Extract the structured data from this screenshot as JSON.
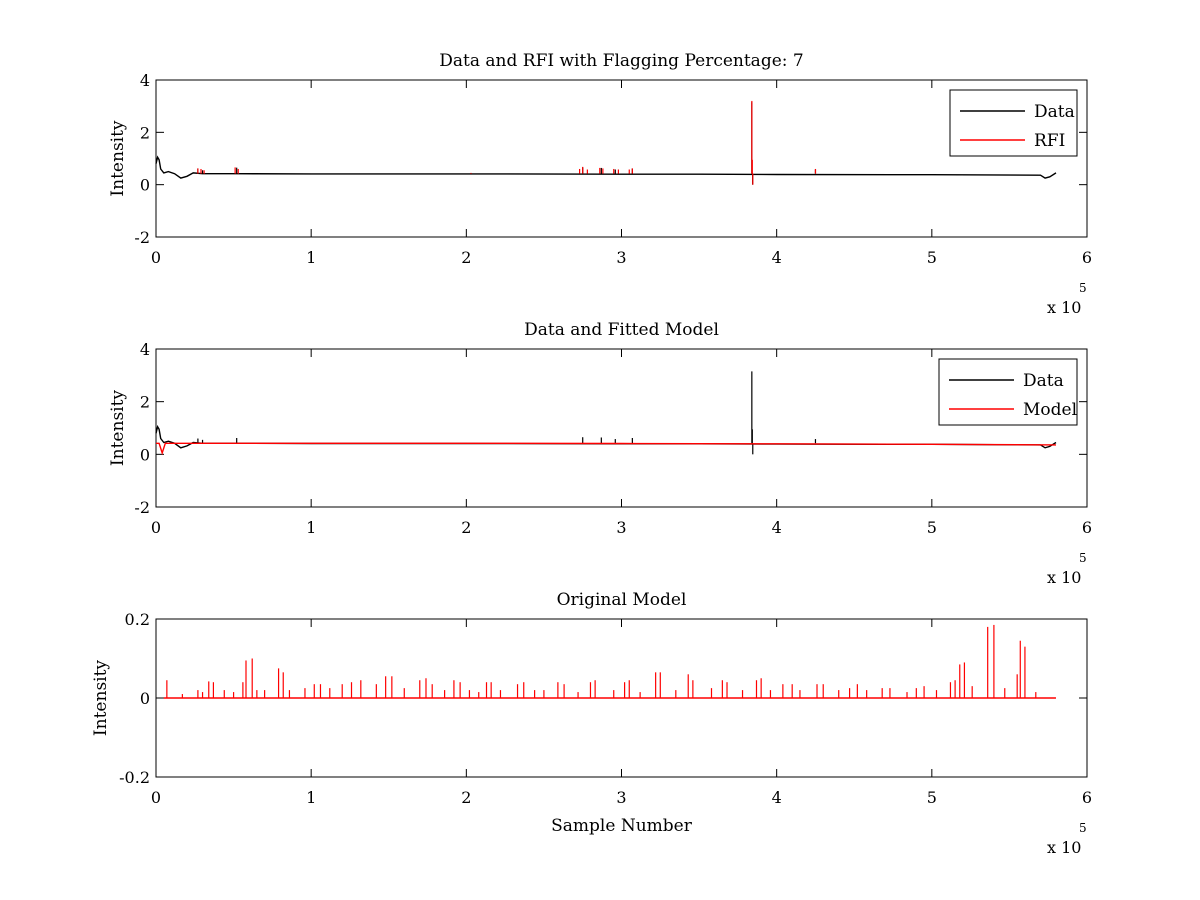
{
  "figure": {
    "background": "#ffffff",
    "axis_color": "#000000"
  },
  "chart_data": [
    {
      "type": "line",
      "title": "Data and RFI with Flagging Percentage: 7",
      "xlabel": "",
      "ylabel": "Intensity",
      "xlim": [
        0,
        6
      ],
      "ylim": [
        -2,
        4
      ],
      "xticks": [
        "0",
        "1",
        "2",
        "3",
        "4",
        "5",
        "6"
      ],
      "yticks": [
        "-2",
        "0",
        "2",
        "4"
      ],
      "x_exponent": {
        "base": "x 10",
        "power": "5"
      },
      "legend": {
        "placement": "top-right",
        "entries": [
          "Data",
          "RFI"
        ]
      },
      "series": [
        {
          "name": "Data",
          "color": "#000000",
          "baseline": 0.42,
          "x": [
            0,
            0.01,
            0.02,
            0.03,
            0.05,
            0.08,
            0.12,
            0.16,
            0.2,
            0.24,
            0.3,
            0.5,
            1.0,
            2.0,
            3.0,
            3.5,
            4.0,
            5.0,
            5.7,
            5.73,
            5.76,
            5.8
          ],
          "y": [
            0.8,
            1.05,
            0.95,
            0.6,
            0.45,
            0.5,
            0.42,
            0.25,
            0.32,
            0.45,
            0.42,
            0.42,
            0.41,
            0.41,
            0.4,
            0.4,
            0.39,
            0.38,
            0.36,
            0.25,
            0.3,
            0.45
          ],
          "spikes": [
            [
              0.27,
              0.62
            ],
            [
              0.3,
              0.55
            ],
            [
              0.52,
              0.65
            ],
            [
              2.75,
              0.66
            ],
            [
              2.87,
              0.64
            ],
            [
              2.96,
              0.58
            ],
            [
              3.07,
              0.62
            ],
            [
              3.84,
              3.15
            ],
            [
              3.845,
              0.0
            ],
            [
              4.25,
              0.58
            ]
          ]
        },
        {
          "name": "RFI",
          "color": "#ff0000",
          "baseline": 0.42,
          "spikes": [
            [
              0.27,
              0.62
            ],
            [
              0.29,
              0.6
            ],
            [
              0.31,
              0.55
            ],
            [
              0.51,
              0.66
            ],
            [
              0.53,
              0.6
            ],
            [
              2.03,
              0.45
            ],
            [
              2.73,
              0.6
            ],
            [
              2.75,
              0.68
            ],
            [
              2.78,
              0.58
            ],
            [
              2.86,
              0.64
            ],
            [
              2.88,
              0.62
            ],
            [
              2.95,
              0.6
            ],
            [
              2.98,
              0.58
            ],
            [
              3.05,
              0.58
            ],
            [
              3.07,
              0.62
            ],
            [
              3.84,
              3.2
            ],
            [
              3.843,
              0.95
            ],
            [
              3.846,
              0.0
            ],
            [
              4.25,
              0.6
            ]
          ]
        }
      ]
    },
    {
      "type": "line",
      "title": "Data and Fitted Model",
      "xlabel": "",
      "ylabel": "Intensity",
      "xlim": [
        0,
        6
      ],
      "ylim": [
        -2,
        4
      ],
      "xticks": [
        "0",
        "1",
        "2",
        "3",
        "4",
        "5",
        "6"
      ],
      "yticks": [
        "-2",
        "0",
        "2",
        "4"
      ],
      "x_exponent": {
        "base": "x 10",
        "power": "5"
      },
      "legend": {
        "placement": "top-right",
        "entries": [
          "Data",
          "Model"
        ]
      },
      "series": [
        {
          "name": "Data",
          "color": "#000000",
          "baseline": 0.42,
          "x": [
            0,
            0.01,
            0.02,
            0.03,
            0.05,
            0.08,
            0.12,
            0.16,
            0.2,
            0.24,
            0.3,
            0.5,
            1.0,
            2.0,
            3.0,
            3.5,
            4.0,
            5.0,
            5.7,
            5.73,
            5.76,
            5.8
          ],
          "y": [
            0.8,
            1.05,
            0.95,
            0.6,
            0.45,
            0.5,
            0.42,
            0.25,
            0.32,
            0.45,
            0.42,
            0.42,
            0.41,
            0.41,
            0.4,
            0.4,
            0.39,
            0.38,
            0.36,
            0.25,
            0.3,
            0.45
          ],
          "spikes": [
            [
              0.27,
              0.6
            ],
            [
              0.3,
              0.55
            ],
            [
              0.52,
              0.62
            ],
            [
              2.75,
              0.65
            ],
            [
              2.87,
              0.64
            ],
            [
              2.96,
              0.58
            ],
            [
              3.07,
              0.62
            ],
            [
              3.84,
              3.15
            ],
            [
              3.843,
              0.95
            ],
            [
              3.846,
              0.0
            ],
            [
              4.25,
              0.58
            ]
          ]
        },
        {
          "name": "Model",
          "color": "#ff0000",
          "x": [
            0,
            0.02,
            0.04,
            0.06,
            0.08,
            1.0,
            2.0,
            3.0,
            4.0,
            5.0,
            5.8
          ],
          "y": [
            0.42,
            0.42,
            0.05,
            0.42,
            0.42,
            0.42,
            0.42,
            0.41,
            0.4,
            0.38,
            0.36
          ]
        }
      ]
    },
    {
      "type": "line",
      "title": "Original Model",
      "xlabel": "Sample Number",
      "ylabel": "Intensity",
      "xlim": [
        0,
        6
      ],
      "ylim": [
        -0.2,
        0.2
      ],
      "xticks": [
        "0",
        "1",
        "2",
        "3",
        "4",
        "5",
        "6"
      ],
      "yticks": [
        "-0.2",
        "0",
        "0.2"
      ],
      "x_exponent": {
        "base": "x 10",
        "power": "5"
      },
      "series": [
        {
          "name": "",
          "color": "#ff0000",
          "baseline": 0.0,
          "x_range": [
            0.05,
            5.8
          ],
          "spikes": [
            [
              0.07,
              0.045
            ],
            [
              0.17,
              0.01
            ],
            [
              0.27,
              0.02
            ],
            [
              0.3,
              0.015
            ],
            [
              0.34,
              0.042
            ],
            [
              0.37,
              0.04
            ],
            [
              0.44,
              0.02
            ],
            [
              0.5,
              0.015
            ],
            [
              0.56,
              0.04
            ],
            [
              0.58,
              0.095
            ],
            [
              0.62,
              0.1
            ],
            [
              0.65,
              0.02
            ],
            [
              0.7,
              0.02
            ],
            [
              0.79,
              0.075
            ],
            [
              0.82,
              0.065
            ],
            [
              0.86,
              0.02
            ],
            [
              0.96,
              0.025
            ],
            [
              1.02,
              0.035
            ],
            [
              1.06,
              0.035
            ],
            [
              1.12,
              0.025
            ],
            [
              1.2,
              0.035
            ],
            [
              1.26,
              0.04
            ],
            [
              1.32,
              0.045
            ],
            [
              1.42,
              0.035
            ],
            [
              1.48,
              0.055
            ],
            [
              1.52,
              0.055
            ],
            [
              1.6,
              0.025
            ],
            [
              1.7,
              0.045
            ],
            [
              1.74,
              0.05
            ],
            [
              1.78,
              0.035
            ],
            [
              1.86,
              0.02
            ],
            [
              1.92,
              0.045
            ],
            [
              1.96,
              0.04
            ],
            [
              2.02,
              0.02
            ],
            [
              2.08,
              0.015
            ],
            [
              2.13,
              0.04
            ],
            [
              2.16,
              0.04
            ],
            [
              2.22,
              0.02
            ],
            [
              2.33,
              0.035
            ],
            [
              2.37,
              0.04
            ],
            [
              2.44,
              0.02
            ],
            [
              2.5,
              0.02
            ],
            [
              2.59,
              0.04
            ],
            [
              2.63,
              0.035
            ],
            [
              2.72,
              0.015
            ],
            [
              2.8,
              0.04
            ],
            [
              2.83,
              0.045
            ],
            [
              2.95,
              0.02
            ],
            [
              3.02,
              0.04
            ],
            [
              3.05,
              0.045
            ],
            [
              3.12,
              0.015
            ],
            [
              3.22,
              0.065
            ],
            [
              3.25,
              0.065
            ],
            [
              3.35,
              0.02
            ],
            [
              3.43,
              0.06
            ],
            [
              3.46,
              0.045
            ],
            [
              3.58,
              0.025
            ],
            [
              3.65,
              0.045
            ],
            [
              3.68,
              0.04
            ],
            [
              3.78,
              0.02
            ],
            [
              3.87,
              0.045
            ],
            [
              3.9,
              0.05
            ],
            [
              3.96,
              0.02
            ],
            [
              4.04,
              0.035
            ],
            [
              4.1,
              0.035
            ],
            [
              4.15,
              0.02
            ],
            [
              4.26,
              0.035
            ],
            [
              4.3,
              0.035
            ],
            [
              4.4,
              0.02
            ],
            [
              4.47,
              0.025
            ],
            [
              4.52,
              0.035
            ],
            [
              4.58,
              0.02
            ],
            [
              4.68,
              0.025
            ],
            [
              4.73,
              0.025
            ],
            [
              4.84,
              0.015
            ],
            [
              4.9,
              0.025
            ],
            [
              4.95,
              0.03
            ],
            [
              5.03,
              0.02
            ],
            [
              5.12,
              0.04
            ],
            [
              5.15,
              0.045
            ],
            [
              5.18,
              0.085
            ],
            [
              5.21,
              0.09
            ],
            [
              5.26,
              0.03
            ],
            [
              5.36,
              0.18
            ],
            [
              5.4,
              0.185
            ],
            [
              5.47,
              0.025
            ],
            [
              5.55,
              0.06
            ],
            [
              5.57,
              0.145
            ],
            [
              5.6,
              0.13
            ],
            [
              5.67,
              0.015
            ]
          ]
        }
      ]
    }
  ]
}
